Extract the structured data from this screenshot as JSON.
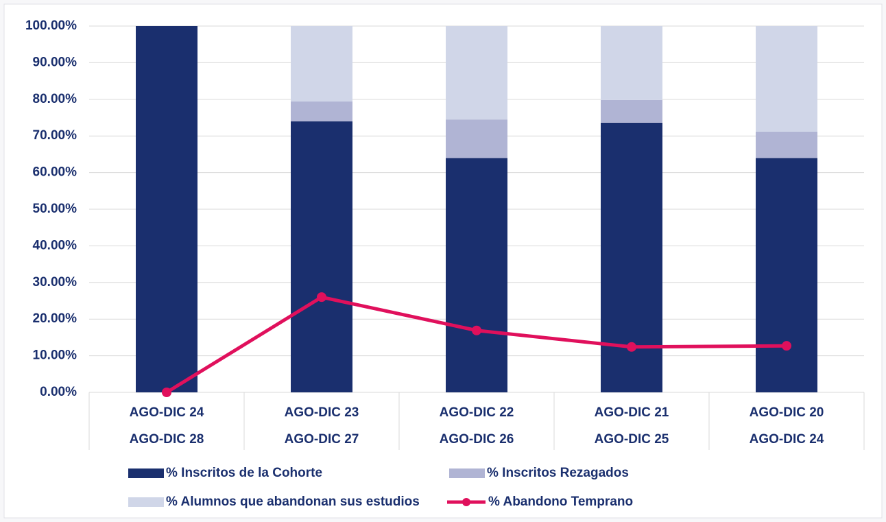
{
  "chart_data": {
    "type": "bar",
    "stacked": true,
    "categories": [
      [
        "AGO-DIC 24",
        "AGO-DIC 28"
      ],
      [
        "AGO-DIC 23",
        "AGO-DIC 27"
      ],
      [
        "AGO-DIC 22",
        "AGO-DIC 26"
      ],
      [
        "AGO-DIC 21",
        "AGO-DIC 25"
      ],
      [
        "AGO-DIC 20",
        "AGO-DIC 24"
      ]
    ],
    "series": [
      {
        "name": "% Inscritos de la Cohorte",
        "color": "#1a2f6e",
        "values": [
          100,
          74.0,
          64.0,
          73.6,
          64.0
        ]
      },
      {
        "name": "% Inscritos Rezagados",
        "color": "#b0b4d4",
        "values": [
          0,
          5.4,
          10.5,
          6.2,
          7.2
        ]
      },
      {
        "name": "% Alumnos que abandonan sus estudios",
        "color": "#d0d6e8",
        "values": [
          0,
          20.6,
          25.5,
          20.2,
          28.8
        ]
      },
      {
        "name": "% Abandono Temprano",
        "color": "#e0105c",
        "type": "line",
        "values": [
          0,
          26.0,
          16.9,
          12.4,
          12.7
        ]
      }
    ],
    "ylim": [
      0,
      100
    ],
    "yticks": [
      {
        "value": 0,
        "label": "0.00%"
      },
      {
        "value": 10,
        "label": "10.00%"
      },
      {
        "value": 20,
        "label": "20.00%"
      },
      {
        "value": 30,
        "label": "30.00%"
      },
      {
        "value": 40,
        "label": "40.00%"
      },
      {
        "value": 50,
        "label": "50.00%"
      },
      {
        "value": 60,
        "label": "60.00%"
      },
      {
        "value": 70,
        "label": "70.00%"
      },
      {
        "value": 80,
        "label": "80.00%"
      },
      {
        "value": 90,
        "label": "90.00%"
      },
      {
        "value": 100,
        "label": "100.00%"
      }
    ],
    "grid": true,
    "legend": "bottom"
  }
}
